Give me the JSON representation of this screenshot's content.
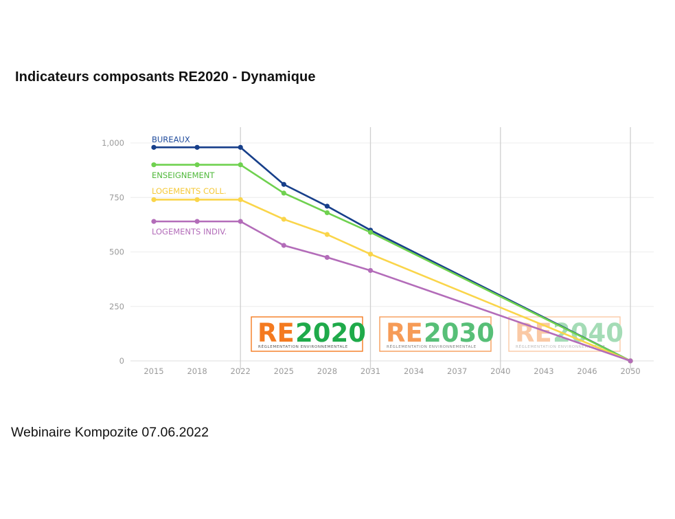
{
  "slide": {
    "title": "Indicateurs composants RE2020 - Dynamique",
    "footer": "Webinaire Kompozite 07.06.2022"
  },
  "badges": [
    {
      "re": "RE",
      "year": "2020",
      "subtitle": "RÉGLEMENTATION ENVIRONNEMENTALE",
      "opacity": 1.0
    },
    {
      "re": "RE",
      "year": "2030",
      "subtitle": "RÉGLEMENTATION ENVIRONNEMENTALE",
      "opacity": 0.75
    },
    {
      "re": "RE",
      "year": "2040",
      "subtitle": "RÉGLEMENTATION ENVIRONNEMENTALE",
      "opacity": 0.4
    }
  ],
  "colors": {
    "re_orange": "#f47a20",
    "re_green": "#1faa4a",
    "grid": "#ececec",
    "vline": "#cfcfcf",
    "tick": "#9a9a9a"
  },
  "chart_data": {
    "type": "line",
    "title": "Indicateurs composants RE2020 - Dynamique",
    "xlabel": "",
    "ylabel": "",
    "categories": [
      "2015",
      "2018",
      "2022",
      "2025",
      "2028",
      "2031",
      "2034",
      "2037",
      "2040",
      "2043",
      "2046",
      "2050"
    ],
    "yticks": [
      "0",
      "250",
      "500",
      "750",
      "1,000"
    ],
    "ylim": [
      0,
      1000
    ],
    "grid": true,
    "vertical_markers": [
      "2022",
      "2031",
      "2040",
      "2050"
    ],
    "legend_position": "inline-left",
    "series": [
      {
        "name": "BUREAUX",
        "color": "#173f8a",
        "points": [
          [
            2015,
            980
          ],
          [
            2018,
            980
          ],
          [
            2022,
            980
          ],
          [
            2025,
            810
          ],
          [
            2028,
            710
          ],
          [
            2031,
            600
          ],
          [
            2050,
            0
          ]
        ]
      },
      {
        "name": "ENSEIGNEMENT",
        "color": "#6fd14f",
        "points": [
          [
            2015,
            900
          ],
          [
            2018,
            900
          ],
          [
            2022,
            900
          ],
          [
            2025,
            770
          ],
          [
            2028,
            680
          ],
          [
            2031,
            590
          ],
          [
            2050,
            0
          ]
        ]
      },
      {
        "name": "LOGEMENTS COLL.",
        "color": "#fad54a",
        "points": [
          [
            2015,
            740
          ],
          [
            2018,
            740
          ],
          [
            2022,
            740
          ],
          [
            2025,
            650
          ],
          [
            2028,
            580
          ],
          [
            2031,
            490
          ],
          [
            2050,
            0
          ]
        ]
      },
      {
        "name": "LOGEMENTS INDIV.",
        "color": "#b36cb9",
        "points": [
          [
            2015,
            640
          ],
          [
            2018,
            640
          ],
          [
            2022,
            640
          ],
          [
            2025,
            530
          ],
          [
            2028,
            475
          ],
          [
            2031,
            415
          ],
          [
            2050,
            0
          ]
        ]
      }
    ],
    "label_colors": {
      "BUREAUX": "#1f4b9c",
      "ENSEIGNEMENT": "#4fb83a",
      "LOGEMENTS COLL.": "#f5c93a",
      "LOGEMENTS INDIV.": "#b36cb9"
    }
  }
}
